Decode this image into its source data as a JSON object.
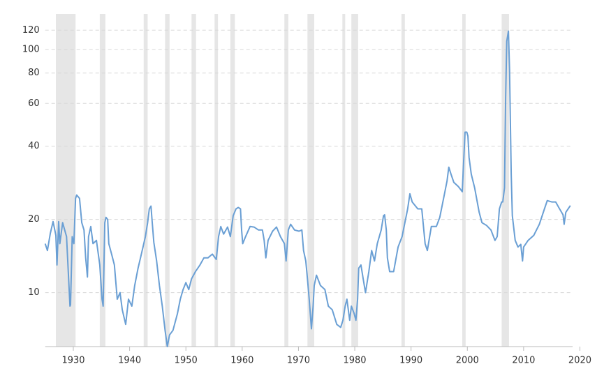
{
  "chart_data": {
    "type": "line",
    "log_y": true,
    "grid": true,
    "xlim": [
      1925,
      2018.7
    ],
    "ylim": [
      6,
      131
    ],
    "xticks": [
      1930,
      1940,
      1950,
      1960,
      1970,
      1980,
      1990,
      2000,
      2010,
      2020
    ],
    "yticks": [
      10,
      20,
      40,
      60,
      80,
      100,
      120
    ],
    "band_color": "#e6e6e6",
    "recessions": [
      [
        1926.9,
        1930.4
      ],
      [
        1934.7,
        1935.7
      ],
      [
        1942.5,
        1943.2
      ],
      [
        1946.3,
        1947.1
      ],
      [
        1951.0,
        1951.8
      ],
      [
        1955.1,
        1955.7
      ],
      [
        1957.9,
        1958.7
      ],
      [
        1967.5,
        1968.2
      ],
      [
        1971.6,
        1972.8
      ],
      [
        1977.8,
        1978.3
      ],
      [
        1979.4,
        1980.6
      ],
      [
        1988.3,
        1988.9
      ],
      [
        1999.1,
        1999.7
      ],
      [
        2006.1,
        2007.4
      ]
    ],
    "x": [
      1925.0,
      1925.4,
      1925.9,
      1926.4,
      1926.9,
      1927.1,
      1927.4,
      1927.6,
      1928.1,
      1928.8,
      1929.4,
      1929.5,
      1929.8,
      1930.1,
      1930.4,
      1930.6,
      1931.1,
      1931.5,
      1931.9,
      1932.2,
      1932.5,
      1932.7,
      1933.1,
      1933.5,
      1934.1,
      1934.7,
      1935.1,
      1935.3,
      1935.6,
      1935.8,
      1936.1,
      1936.3,
      1936.8,
      1937.3,
      1937.8,
      1938.3,
      1938.7,
      1939.3,
      1939.8,
      1940.4,
      1940.9,
      1941.5,
      1942.0,
      1942.8,
      1943.2,
      1943.5,
      1943.8,
      1944.0,
      1944.3,
      1944.8,
      1945.3,
      1945.8,
      1946.3,
      1946.7,
      1947.1,
      1947.7,
      1948.5,
      1949.0,
      1949.5,
      1950.0,
      1950.5,
      1951.0,
      1951.7,
      1952.5,
      1953.2,
      1953.9,
      1954.7,
      1955.4,
      1955.8,
      1956.2,
      1956.7,
      1957.4,
      1957.9,
      1958.4,
      1958.9,
      1959.3,
      1959.7,
      1959.9,
      1960.1,
      1960.6,
      1961.4,
      1962.1,
      1962.9,
      1963.6,
      1963.9,
      1964.2,
      1964.6,
      1965.4,
      1966.1,
      1966.8,
      1967.5,
      1967.8,
      1968.2,
      1968.6,
      1969.3,
      1970.1,
      1970.6,
      1970.9,
      1971.3,
      1971.6,
      1971.9,
      1972.3,
      1972.6,
      1972.8,
      1973.2,
      1973.9,
      1974.7,
      1975.3,
      1976.0,
      1976.8,
      1977.5,
      1977.9,
      1978.3,
      1978.6,
      1979.1,
      1979.4,
      1979.9,
      1980.2,
      1980.5,
      1980.7,
      1981.1,
      1981.5,
      1981.9,
      1982.5,
      1983.0,
      1983.5,
      1984.0,
      1984.7,
      1985.1,
      1985.3,
      1985.6,
      1985.8,
      1986.2,
      1986.9,
      1987.7,
      1988.4,
      1988.9,
      1989.4,
      1989.8,
      1990.2,
      1991.2,
      1991.9,
      1992.5,
      1992.9,
      1993.6,
      1994.5,
      1995.1,
      1995.9,
      1996.4,
      1996.7,
      1997.1,
      1997.6,
      1998.4,
      1999.1,
      1999.3,
      1999.6,
      1999.9,
      2000.1,
      2000.3,
      2000.7,
      2001.3,
      2002.1,
      2002.6,
      2003.4,
      2004.2,
      2004.9,
      2005.3,
      2005.7,
      2006.1,
      2006.3,
      2006.6,
      2006.8,
      2007.0,
      2007.3,
      2007.5,
      2007.8,
      2008.0,
      2008.5,
      2009.0,
      2009.5,
      2009.8,
      2010.0,
      2010.8,
      2011.8,
      2012.8,
      2013.7,
      2014.2,
      2015.0,
      2015.7,
      2016.2,
      2017.0,
      2017.2,
      2017.5,
      2018.3
    ],
    "series": [
      {
        "color": "#6a9fd4",
        "values": [
          15.9,
          14.9,
          17.5,
          19.6,
          17.2,
          13.0,
          19.6,
          15.9,
          19.4,
          17.0,
          8.8,
          8.9,
          17.0,
          15.9,
          24.4,
          25.2,
          24.4,
          19.4,
          18.1,
          13.9,
          11.6,
          17.0,
          18.7,
          15.9,
          16.4,
          13.0,
          9.4,
          8.8,
          19.4,
          20.4,
          20.0,
          15.9,
          14.4,
          13.0,
          9.4,
          10.0,
          8.5,
          7.4,
          9.4,
          8.8,
          10.7,
          12.6,
          14.1,
          17.0,
          19.4,
          22.1,
          22.7,
          19.6,
          16.1,
          13.5,
          10.7,
          8.8,
          7.0,
          6.0,
          6.7,
          7.0,
          8.2,
          9.4,
          10.3,
          11.0,
          10.3,
          11.4,
          12.2,
          13.0,
          13.9,
          13.9,
          14.4,
          13.7,
          17.0,
          18.7,
          17.4,
          18.6,
          17.0,
          20.7,
          22.1,
          22.4,
          22.1,
          18.1,
          15.9,
          17.0,
          18.7,
          18.6,
          18.1,
          18.1,
          16.4,
          13.9,
          16.4,
          17.9,
          18.6,
          17.0,
          15.9,
          13.5,
          18.1,
          19.1,
          18.1,
          17.9,
          18.1,
          14.9,
          13.5,
          11.4,
          9.4,
          7.1,
          8.8,
          10.7,
          11.8,
          10.7,
          10.3,
          8.8,
          8.5,
          7.4,
          7.2,
          7.7,
          8.8,
          9.4,
          7.7,
          8.8,
          8.2,
          7.7,
          9.4,
          12.6,
          13.0,
          11.4,
          10.0,
          12.2,
          14.9,
          13.5,
          15.9,
          18.1,
          20.7,
          20.9,
          18.1,
          13.9,
          12.2,
          12.2,
          15.4,
          17.0,
          19.4,
          22.1,
          25.5,
          23.6,
          22.1,
          22.1,
          15.9,
          14.9,
          18.7,
          18.7,
          20.4,
          25.2,
          28.8,
          32.8,
          30.7,
          28.4,
          27.3,
          26.0,
          32.8,
          45.7,
          45.7,
          44.0,
          36.0,
          30.7,
          27.0,
          21.4,
          19.4,
          18.9,
          18.1,
          16.4,
          17.0,
          22.1,
          23.6,
          23.6,
          27.0,
          63,
          108,
          119,
          83,
          30.7,
          20.7,
          16.4,
          15.4,
          15.8,
          13.5,
          15.4,
          16.4,
          17.2,
          19.1,
          22.1,
          23.9,
          23.6,
          23.6,
          22.5,
          20.9,
          19.1,
          21.4,
          22.8
        ]
      }
    ]
  }
}
